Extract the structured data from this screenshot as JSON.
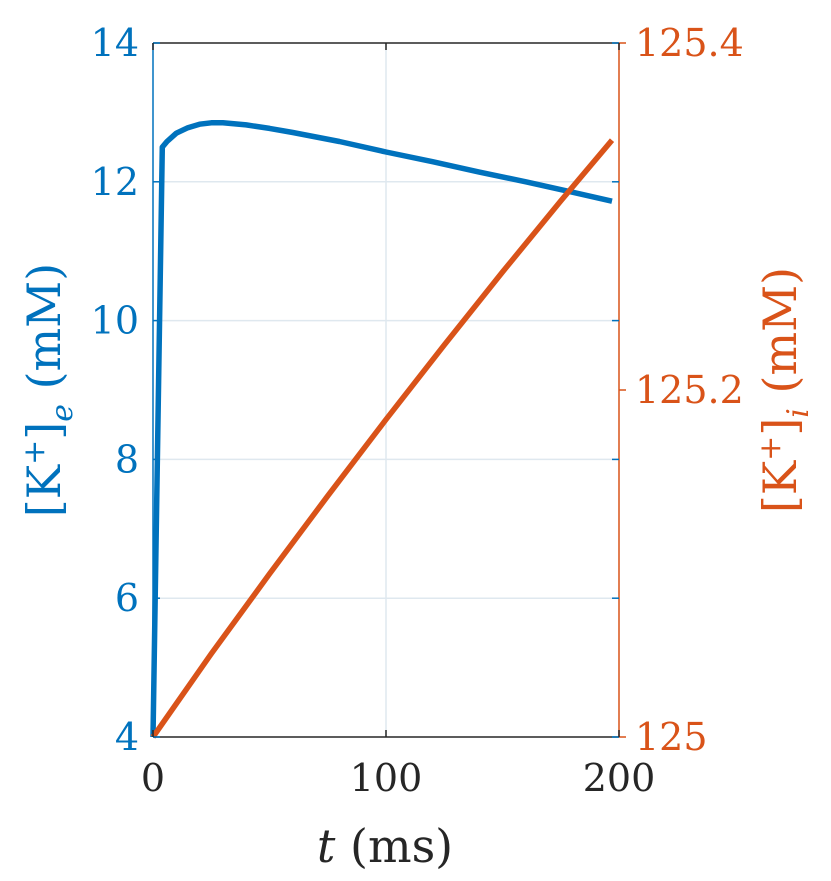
{
  "chart_data": {
    "type": "line",
    "xlabel": "t (ms)",
    "ylabel_left": "[K+]e (mM)",
    "ylabel_right": "[K+]i (mM)",
    "xlim": [
      0,
      200
    ],
    "ylim_left": [
      4,
      14
    ],
    "ylim_right": [
      125,
      125.4
    ],
    "xticks": [
      "0",
      "100",
      "200"
    ],
    "yticks_left": [
      "4",
      "6",
      "8",
      "10",
      "12",
      "14"
    ],
    "yticks_right": [
      "125",
      "125.2",
      "125.4"
    ],
    "grid": true,
    "colors": {
      "left": "#0072BD",
      "right": "#D95319",
      "axis": "#262626",
      "grid": "#dfe8ef"
    },
    "series": [
      {
        "axis": "left",
        "x": [
          0,
          4,
          6,
          10,
          15,
          20,
          25,
          30,
          40,
          50,
          60,
          80,
          100,
          120,
          140,
          160,
          180,
          197
        ],
        "y": [
          4,
          12.5,
          12.58,
          12.7,
          12.78,
          12.83,
          12.85,
          12.85,
          12.82,
          12.77,
          12.71,
          12.58,
          12.43,
          12.29,
          12.14,
          12.0,
          11.85,
          11.72
        ]
      },
      {
        "axis": "right",
        "x": [
          0,
          25,
          50,
          75,
          100,
          125,
          150,
          175,
          197
        ],
        "y": [
          125.0,
          125.048,
          125.094,
          125.139,
          125.183,
          125.226,
          125.268,
          125.309,
          125.344
        ]
      }
    ]
  }
}
